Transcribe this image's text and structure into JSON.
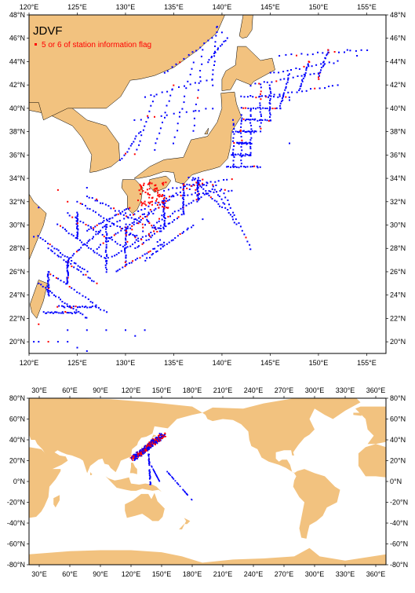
{
  "figure": {
    "title": "JDVF",
    "legend_label": "5 or 6 of station information flag",
    "land_color": "#f2c27f",
    "sea_color": "#ffffff",
    "normal_station_color": "#0000ff",
    "flagged_station_color": "#ff0000"
  },
  "regional_map": {
    "lon_range": [
      120,
      157
    ],
    "lat_range": [
      19,
      48
    ],
    "lon_ticks": [
      "120°E",
      "125°E",
      "130°E",
      "135°E",
      "140°E",
      "145°E",
      "150°E",
      "155°E"
    ],
    "lat_ticks": [
      "20°N",
      "22°N",
      "24°N",
      "26°N",
      "28°N",
      "30°N",
      "32°N",
      "34°N",
      "36°N",
      "38°N",
      "40°N",
      "42°N",
      "44°N",
      "46°N",
      "48°N"
    ]
  },
  "global_map": {
    "lon_range": [
      20,
      370
    ],
    "lat_range": [
      -80,
      80
    ],
    "lon_ticks": [
      "30°E",
      "60°E",
      "90°E",
      "120°E",
      "150°E",
      "180°E",
      "210°E",
      "240°E",
      "270°E",
      "300°E",
      "330°E",
      "360°E"
    ],
    "lat_ticks": [
      "-80°N",
      "-60°N",
      "-40°N",
      "-20°N",
      "0°N",
      "20°N",
      "40°N",
      "60°N",
      "80°N"
    ]
  },
  "icons": {
    "legend_marker": "red-square-marker"
  }
}
